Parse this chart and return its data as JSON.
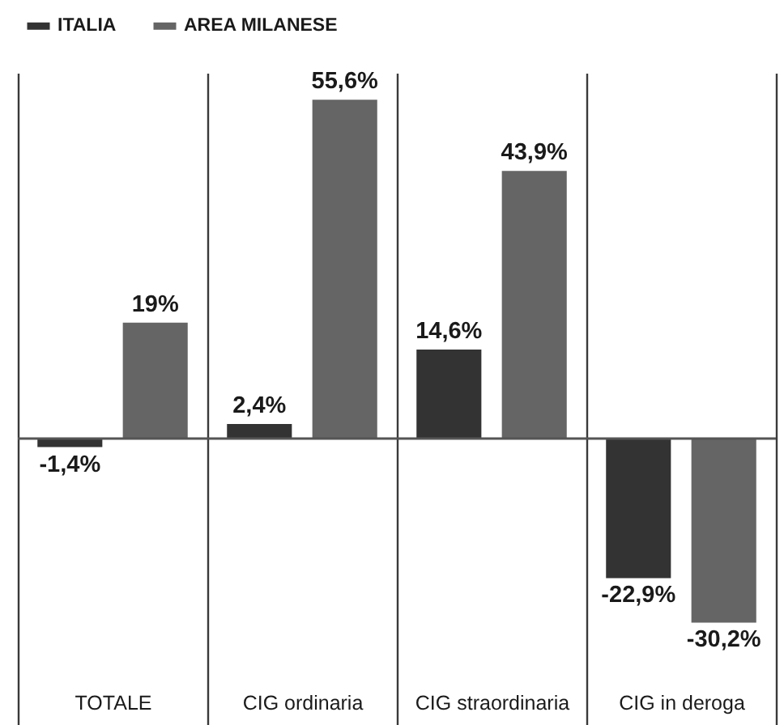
{
  "chart_data": {
    "type": "bar",
    "categories": [
      "TOTALE",
      "CIG ordinaria",
      "CIG straordinaria",
      "CIG in deroga"
    ],
    "series": [
      {
        "name": "ITALIA",
        "color": "#333333",
        "values": [
          -1.4,
          2.4,
          14.6,
          -22.9
        ],
        "value_labels": [
          "-1,4%",
          "2,4%",
          "14,6%",
          "-22,9%"
        ]
      },
      {
        "name": "AREA MILANESE",
        "color": "#656565",
        "values": [
          19,
          55.6,
          43.9,
          -30.2
        ],
        "value_labels": [
          "19%",
          "55,6%",
          "43,9%",
          "-30,2%"
        ]
      }
    ],
    "ylim": [
      -47,
      60
    ],
    "ref_lines": [
      {
        "axis": "y",
        "value": 0,
        "color": "#555555"
      }
    ],
    "grid": "x",
    "legend": "top left",
    "tick_labels": "x"
  }
}
